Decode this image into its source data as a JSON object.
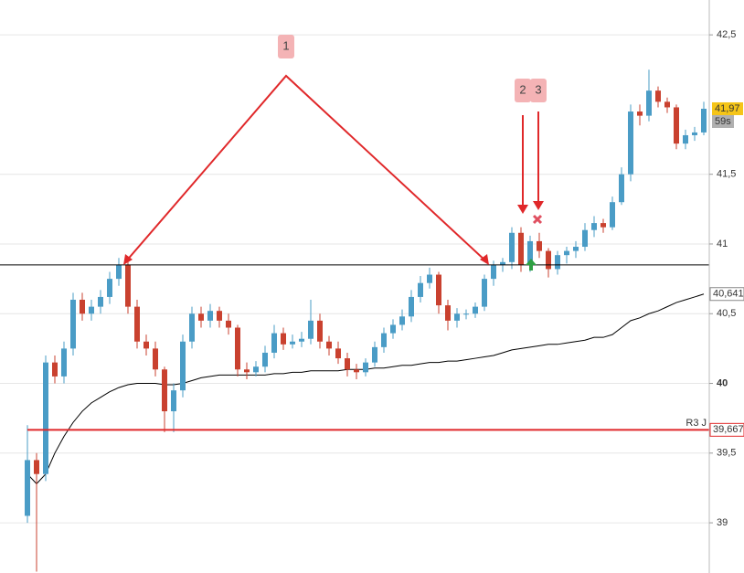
{
  "chart_data": {
    "type": "candlestick",
    "open": [
      39.05,
      39.45,
      39.35,
      40.15,
      40.05,
      40.25,
      40.6,
      40.5,
      40.55,
      40.62,
      40.75,
      40.85,
      40.55,
      40.3,
      40.25,
      40.1,
      39.8,
      39.95,
      40.3,
      40.5,
      40.45,
      40.52,
      40.45,
      40.4,
      40.1,
      40.08,
      40.12,
      40.22,
      40.36,
      40.28,
      40.3,
      40.32,
      40.45,
      40.3,
      40.25,
      40.18,
      40.1,
      40.08,
      40.15,
      40.26,
      40.36,
      40.42,
      40.48,
      40.62,
      40.72,
      40.78,
      40.56,
      40.45,
      40.5,
      40.5,
      40.55,
      40.75,
      40.85,
      40.87,
      41.08,
      40.85,
      41.02,
      40.95,
      40.82,
      40.92,
      40.95,
      40.98,
      41.1,
      41.15,
      41.12,
      41.3,
      41.5,
      41.95,
      41.92,
      42.1,
      42.02,
      41.98,
      41.72,
      41.78,
      41.8
    ],
    "high": [
      39.7,
      39.5,
      40.2,
      40.2,
      40.3,
      40.65,
      40.65,
      40.6,
      40.67,
      40.8,
      40.9,
      40.88,
      40.6,
      40.35,
      40.3,
      40.12,
      40.0,
      40.35,
      40.55,
      40.55,
      40.57,
      40.55,
      40.5,
      40.42,
      40.15,
      40.16,
      40.27,
      40.42,
      40.4,
      40.35,
      40.37,
      40.6,
      40.5,
      40.34,
      40.3,
      40.22,
      40.14,
      40.18,
      40.3,
      40.4,
      40.46,
      40.53,
      40.67,
      40.77,
      40.83,
      40.8,
      40.6,
      40.54,
      40.53,
      40.58,
      40.78,
      40.88,
      40.9,
      41.12,
      41.12,
      41.06,
      41.08,
      40.97,
      40.95,
      40.98,
      41.02,
      41.15,
      41.2,
      41.18,
      41.34,
      41.55,
      42.0,
      42.0,
      42.25,
      42.13,
      42.05,
      42.0,
      41.82,
      41.84,
      42.02
    ],
    "low": [
      39.0,
      38.65,
      39.3,
      40.0,
      40.0,
      40.2,
      40.45,
      40.45,
      40.5,
      40.57,
      40.7,
      40.5,
      40.25,
      40.2,
      40.05,
      39.65,
      39.65,
      39.9,
      40.25,
      40.4,
      40.4,
      40.4,
      40.35,
      40.05,
      40.03,
      40.05,
      40.08,
      40.18,
      40.24,
      40.25,
      40.26,
      40.28,
      40.25,
      40.2,
      40.14,
      40.05,
      40.03,
      40.05,
      40.12,
      40.22,
      40.32,
      40.38,
      40.44,
      40.58,
      40.68,
      40.5,
      40.38,
      40.4,
      40.46,
      40.47,
      40.52,
      40.7,
      40.8,
      40.82,
      40.8,
      40.8,
      40.9,
      40.76,
      40.78,
      40.86,
      40.9,
      40.95,
      41.05,
      41.08,
      41.1,
      41.28,
      41.45,
      41.85,
      41.88,
      41.98,
      41.94,
      41.68,
      41.68,
      41.74,
      41.78
    ],
    "close": [
      39.45,
      39.35,
      40.15,
      40.05,
      40.25,
      40.6,
      40.5,
      40.55,
      40.62,
      40.75,
      40.85,
      40.55,
      40.3,
      40.25,
      40.1,
      39.8,
      39.95,
      40.3,
      40.5,
      40.45,
      40.52,
      40.45,
      40.4,
      40.1,
      40.08,
      40.12,
      40.22,
      40.36,
      40.28,
      40.3,
      40.32,
      40.45,
      40.3,
      40.25,
      40.18,
      40.1,
      40.08,
      40.15,
      40.26,
      40.36,
      40.42,
      40.48,
      40.62,
      40.72,
      40.78,
      40.56,
      40.45,
      40.5,
      40.5,
      40.55,
      40.75,
      40.85,
      40.87,
      41.08,
      40.85,
      41.02,
      40.95,
      40.82,
      40.92,
      40.95,
      40.98,
      41.1,
      41.15,
      41.12,
      41.3,
      41.5,
      41.95,
      41.92,
      42.1,
      42.02,
      41.98,
      41.72,
      41.78,
      41.8,
      41.97
    ],
    "up_color": "#4a9cc6",
    "down_color": "#c9412f",
    "moving_average": {
      "color": "#000000",
      "last_label": "40,641",
      "values": [
        39.35,
        39.28,
        39.35,
        39.5,
        39.62,
        39.72,
        39.8,
        39.86,
        39.9,
        39.94,
        39.97,
        39.99,
        40.0,
        40.0,
        40.0,
        39.99,
        39.99,
        40.0,
        40.02,
        40.04,
        40.05,
        40.06,
        40.06,
        40.06,
        40.06,
        40.06,
        40.06,
        40.07,
        40.07,
        40.08,
        40.08,
        40.09,
        40.09,
        40.09,
        40.09,
        40.1,
        40.1,
        40.1,
        40.11,
        40.11,
        40.12,
        40.13,
        40.13,
        40.14,
        40.15,
        40.15,
        40.16,
        40.16,
        40.17,
        40.18,
        40.19,
        40.2,
        40.22,
        40.24,
        40.25,
        40.26,
        40.27,
        40.28,
        40.28,
        40.29,
        40.3,
        40.31,
        40.33,
        40.33,
        40.35,
        40.4,
        40.45,
        40.47,
        40.5,
        40.52,
        40.55,
        40.58,
        40.6,
        40.62,
        40.641
      ]
    },
    "horizontal_line": {
      "value": 40.85,
      "color": "#000000"
    },
    "resistance": {
      "name": "R3 J",
      "value": 39.667,
      "label": "39,667",
      "color": "#e0282a"
    },
    "last_price": {
      "value": 41.97,
      "label": "41,97",
      "timer": "59s"
    },
    "annotations": [
      "1",
      "2",
      "3"
    ],
    "ylim": [
      38.64,
      42.75
    ],
    "yticks": [
      {
        "value": 39,
        "label": "39"
      },
      {
        "value": 39.5,
        "label": "39,5"
      },
      40,
      41,
      {
        "value": 40.5,
        "label": "40,5"
      },
      {
        "value": 41.5,
        "label": "41,5"
      },
      {
        "value": 42.5,
        "label": "42,5"
      }
    ],
    "grid": true
  }
}
